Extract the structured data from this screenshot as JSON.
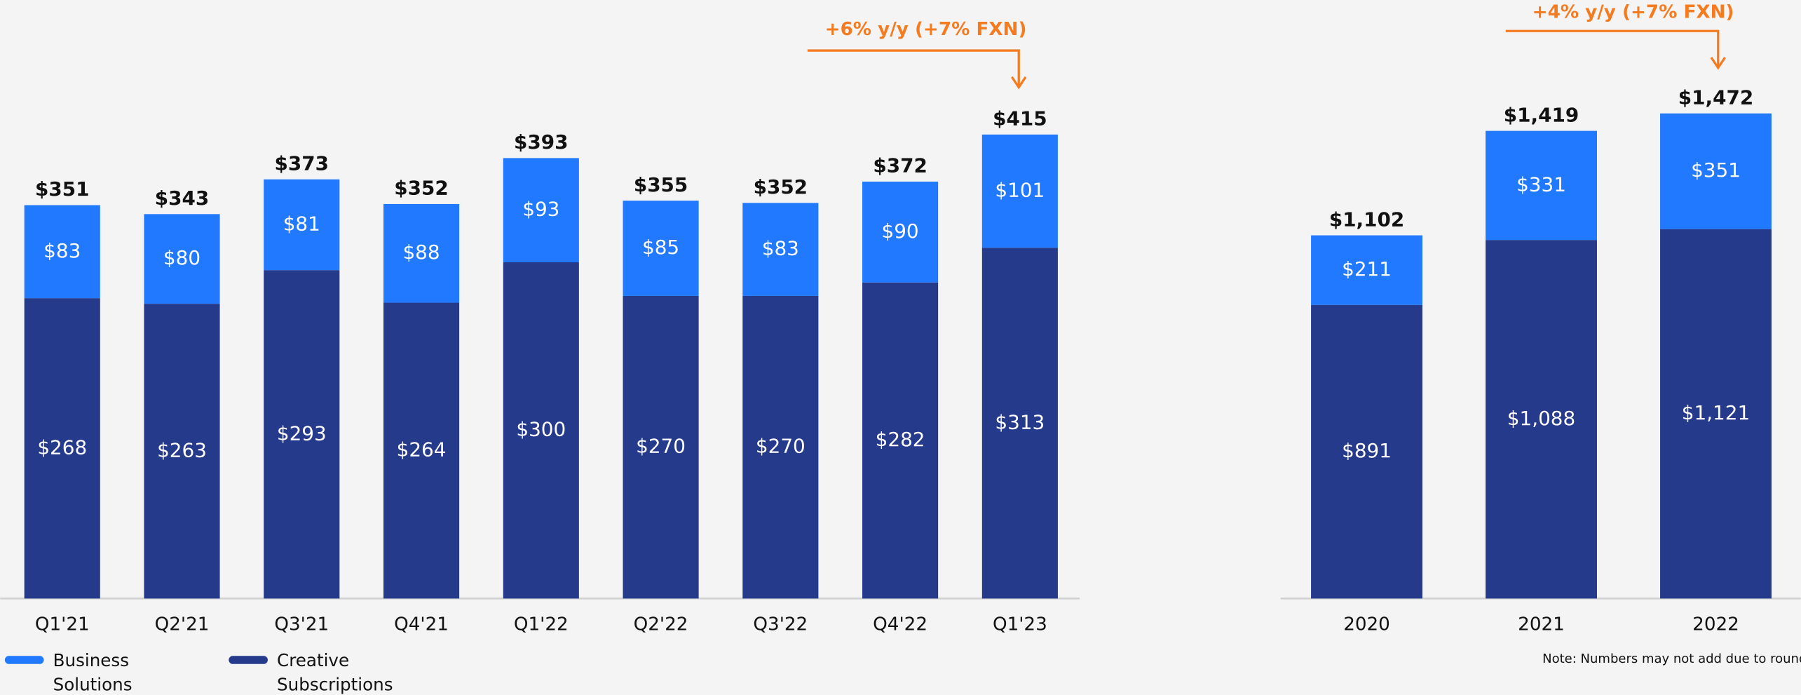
{
  "chart_data": [
    {
      "type": "bar",
      "stacked": true,
      "annotation": "+6% y/y (+7% FXN)",
      "categories": [
        "Q1'21",
        "Q2'21",
        "Q3'21",
        "Q4'21",
        "Q1'22",
        "Q2'22",
        "Q3'22",
        "Q4'22",
        "Q1'23"
      ],
      "series": [
        {
          "name": "Business Solutions",
          "color": "#2079ff",
          "values": [
            83,
            80,
            81,
            88,
            93,
            85,
            83,
            90,
            101
          ],
          "value_labels": [
            "$83",
            "$80",
            "$81",
            "$88",
            "$93",
            "$85",
            "$83",
            "$90",
            "$101"
          ]
        },
        {
          "name": "Creative Subscriptions",
          "color": "#263a8c",
          "values": [
            268,
            263,
            293,
            264,
            300,
            270,
            270,
            282,
            313
          ],
          "value_labels": [
            "$268",
            "$263",
            "$293",
            "$264",
            "$300",
            "$270",
            "$270",
            "$282",
            "$313"
          ]
        }
      ],
      "totals": [
        351,
        343,
        373,
        352,
        393,
        355,
        352,
        372,
        415
      ],
      "total_labels": [
        "$351",
        "$343",
        "$373",
        "$352",
        "$393",
        "$355",
        "$352",
        "$372",
        "$415"
      ],
      "ylim": [
        0,
        450
      ]
    },
    {
      "type": "bar",
      "stacked": true,
      "annotation": "+4% y/y (+7% FXN)",
      "categories": [
        "2020",
        "2021",
        "2022"
      ],
      "series": [
        {
          "name": "Business Solutions",
          "color": "#2079ff",
          "values": [
            211,
            331,
            351
          ],
          "value_labels": [
            "$211",
            "$331",
            "$351"
          ]
        },
        {
          "name": "Creative Subscriptions",
          "color": "#263a8c",
          "values": [
            891,
            1088,
            1121
          ],
          "value_labels": [
            "$891",
            "$1,088",
            "$1,121"
          ]
        }
      ],
      "totals": [
        1102,
        1419,
        1472
      ],
      "total_labels": [
        "$1,102",
        "$1,419",
        "$1,472"
      ],
      "ylim": [
        0,
        1600
      ],
      "note": "Note: Numbers may not add due to rounding"
    }
  ]
}
